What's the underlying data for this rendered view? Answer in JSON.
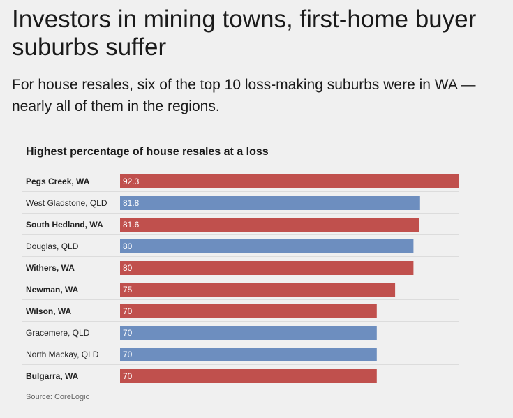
{
  "headline": "Investors in mining towns, first-home buyer suburbs suffer",
  "subhead": "For house resales, six of the top 10 loss-making suburbs were in WA — nearly all of them in the regions.",
  "chart_data": {
    "type": "bar",
    "orientation": "horizontal",
    "title": "Highest percentage of house resales at a loss",
    "categories": [
      "Pegs Creek, WA",
      "West Gladstone, QLD",
      "South Hedland, WA",
      "Douglas, QLD",
      "Withers, WA",
      "Newman, WA",
      "Wilson, WA",
      "Gracemere, QLD",
      "North Mackay, QLD",
      "Bulgarra, WA"
    ],
    "values": [
      92.3,
      81.8,
      81.6,
      80,
      80,
      75,
      70,
      70,
      70,
      70
    ],
    "value_labels": [
      "92.3",
      "81.8",
      "81.6",
      "80",
      "80",
      "75",
      "70",
      "70",
      "70",
      "70"
    ],
    "states": [
      "WA",
      "QLD",
      "WA",
      "QLD",
      "WA",
      "WA",
      "WA",
      "QLD",
      "QLD",
      "WA"
    ],
    "xlim": [
      0,
      100
    ],
    "xlabel": "",
    "ylabel": "",
    "grid": false,
    "colors": {
      "WA": "#c0504d",
      "QLD": "#6d8ebf"
    }
  },
  "source": "Source: CoreLogic"
}
